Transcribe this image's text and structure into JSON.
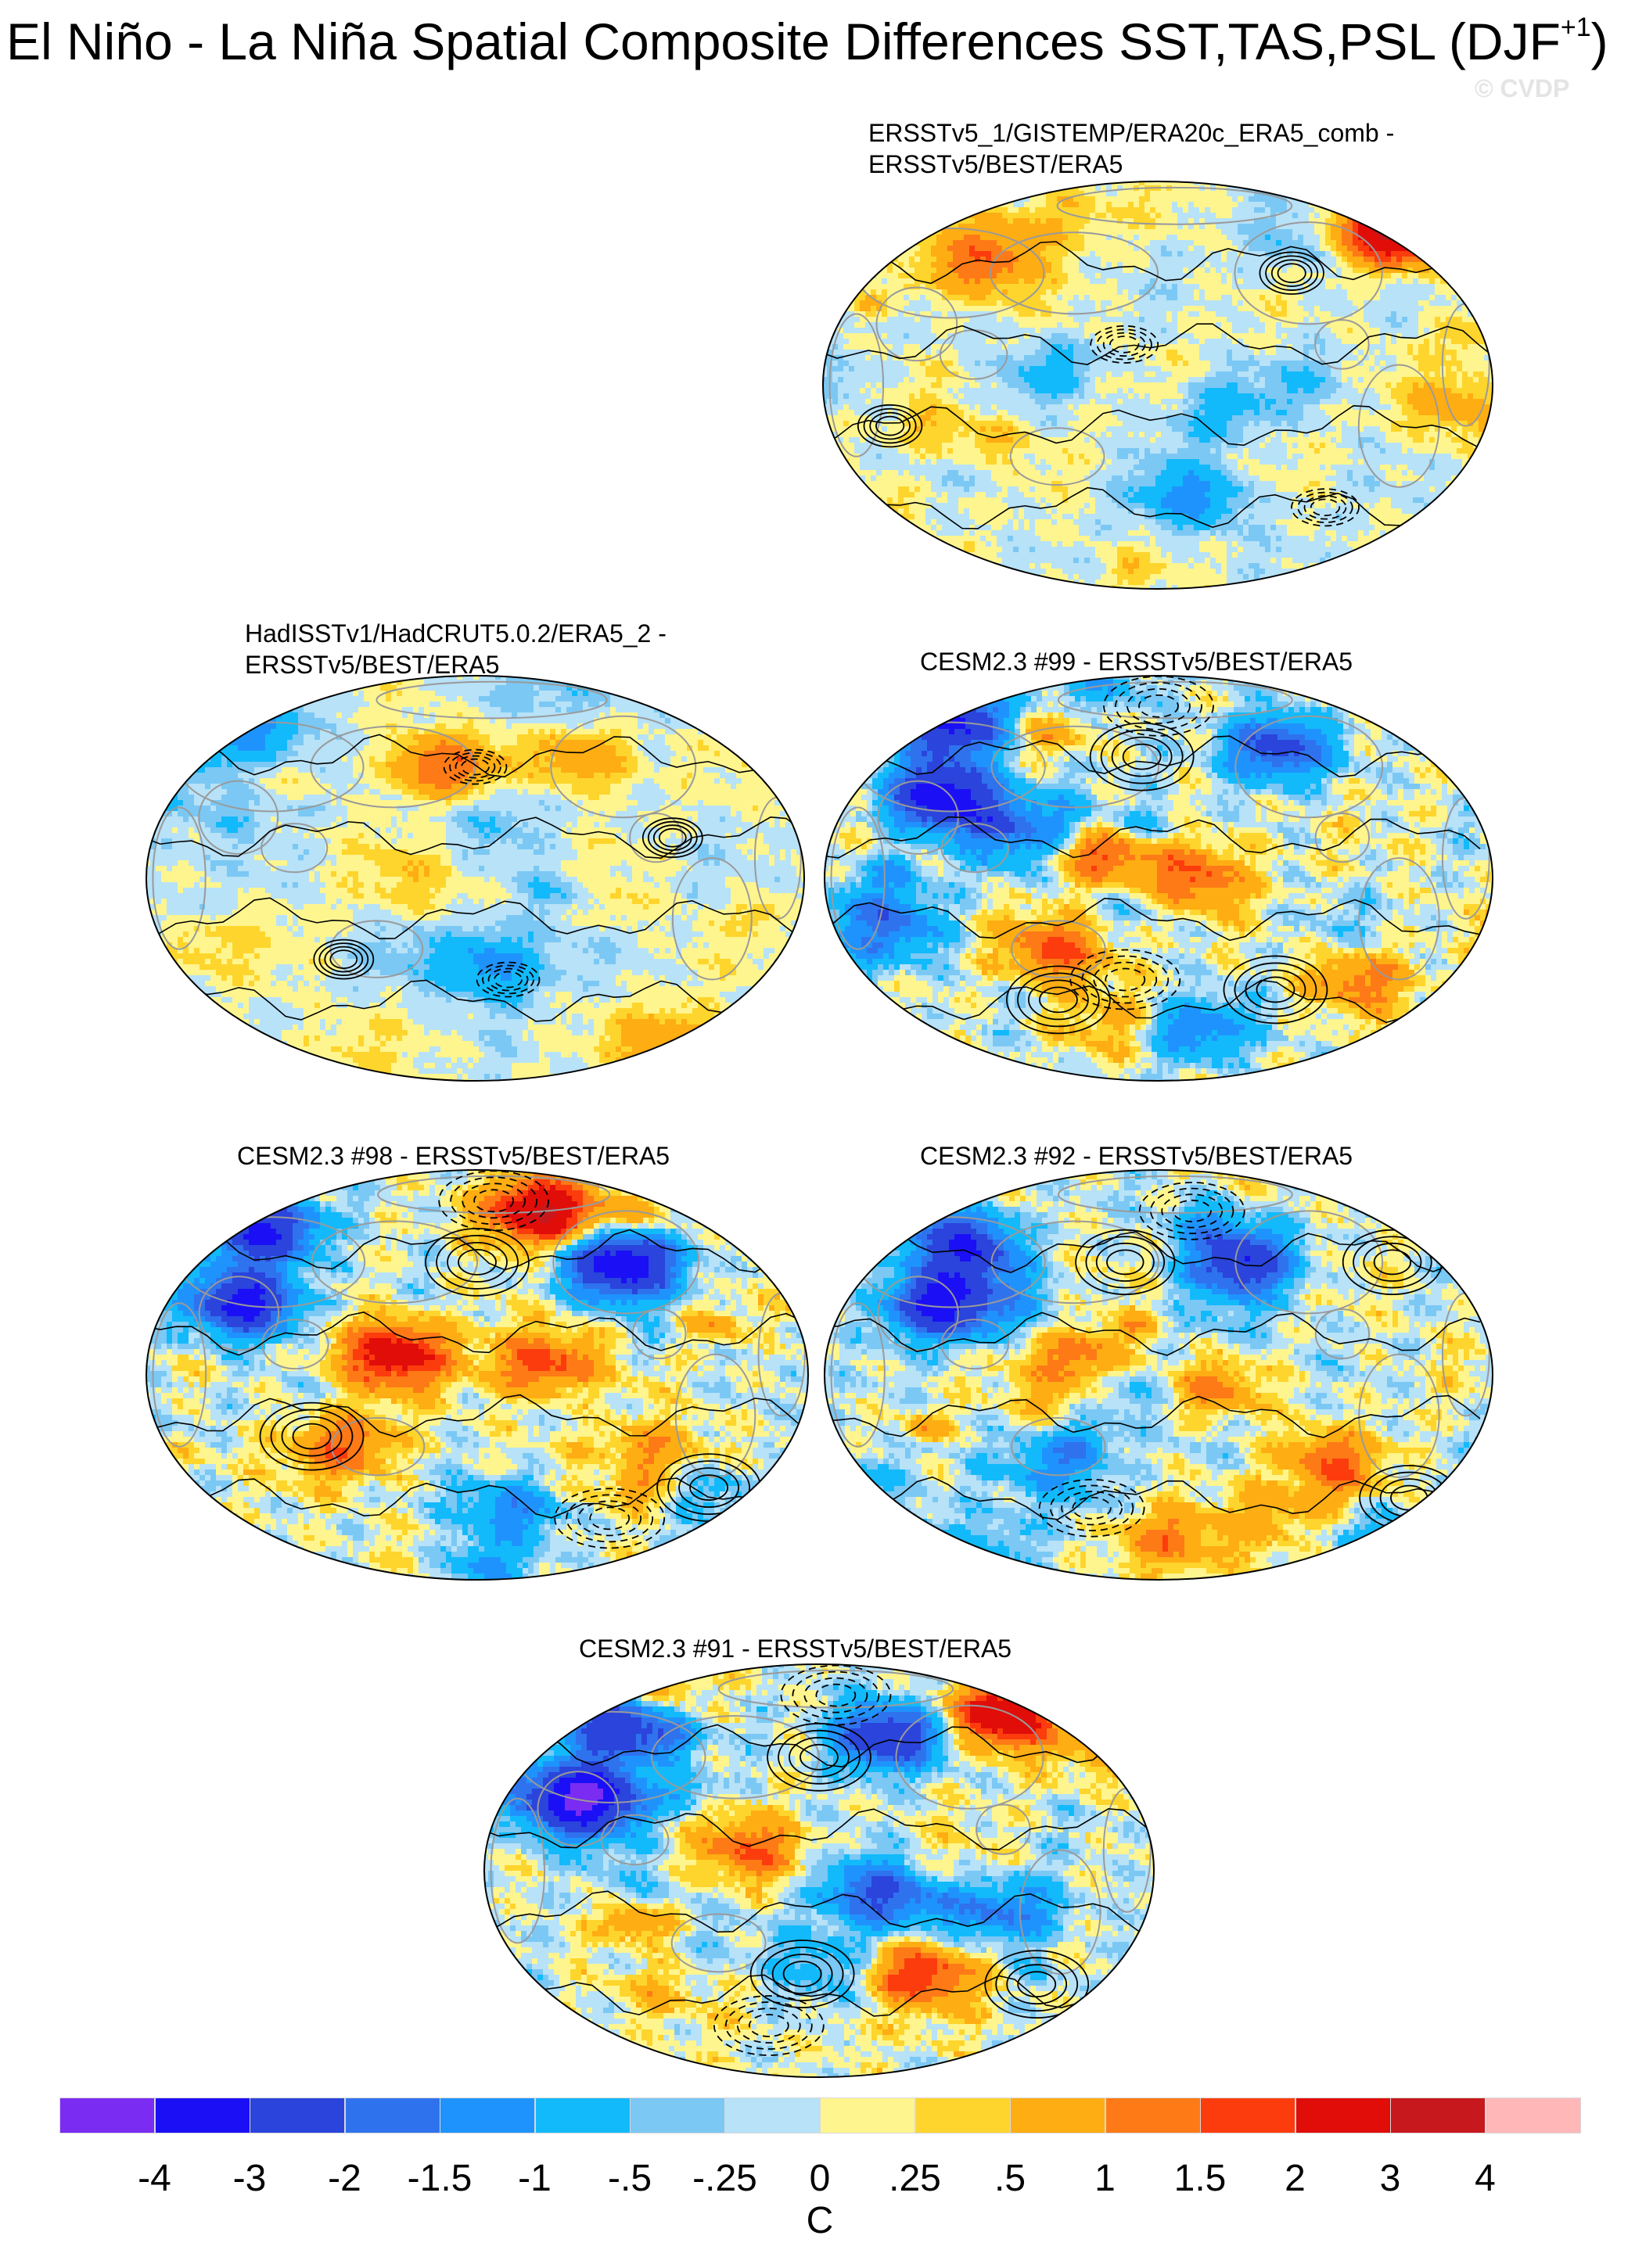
{
  "figure": {
    "title": "El Niño - La Niña Spatial Composite Differences SST,TAS,PSL (DJF",
    "title_superscript": "+1",
    "title_close": ")",
    "watermark": "© CVDP"
  },
  "panels": [
    {
      "id": "p1",
      "title_lines": [
        "ERSSTv5_1/GISTEMP/ERA20c_ERA5_comb -",
        "ERSSTv5/BEST/ERA5"
      ],
      "seed": 11,
      "amp": 0.55,
      "blobs": [
        [
          -0.55,
          0.6,
          1.3
        ],
        [
          0.7,
          0.75,
          3.2
        ],
        [
          0.1,
          -0.55,
          -1.2
        ],
        [
          -0.3,
          0.05,
          -0.6
        ],
        [
          0.9,
          -0.1,
          0.8
        ]
      ],
      "lows": [
        [
          0.5,
          -0.6
        ],
        [
          -0.1,
          0.2
        ]
      ],
      "highs": [
        [
          -0.8,
          -0.2
        ],
        [
          0.4,
          0.55
        ]
      ]
    },
    {
      "id": "p2",
      "title_lines": [
        "HadISSTv1/HadCRUT5.0.2/ERA5_2 -",
        "ERSSTv5/BEST/ERA5"
      ],
      "seed": 23,
      "amp": 0.5,
      "blobs": [
        [
          -0.1,
          0.55,
          1.5
        ],
        [
          0.35,
          0.6,
          1.2
        ],
        [
          -0.7,
          0.7,
          -1.2
        ],
        [
          0.05,
          -0.45,
          -1.0
        ],
        [
          0.6,
          -0.8,
          0.9
        ]
      ],
      "lows": [
        [
          0.0,
          0.55
        ],
        [
          0.1,
          -0.5
        ]
      ],
      "highs": [
        [
          -0.4,
          -0.4
        ],
        [
          0.6,
          0.2
        ]
      ]
    },
    {
      "id": "p3",
      "title_lines": [
        "CESM2.3 #99 - ERSSTv5/BEST/ERA5"
      ],
      "seed": 37,
      "amp": 1.0,
      "blobs": [
        [
          -0.6,
          0.75,
          -3.0
        ],
        [
          0.35,
          0.65,
          -2.5
        ],
        [
          -0.65,
          0.4,
          -3.8
        ],
        [
          -0.2,
          0.12,
          2.2
        ],
        [
          0.1,
          0.0,
          1.6
        ],
        [
          -0.3,
          -0.35,
          1.6
        ],
        [
          0.6,
          -0.5,
          1.2
        ],
        [
          0.1,
          -0.75,
          -1.5
        ]
      ],
      "lows": [
        [
          -0.1,
          -0.5
        ],
        [
          0.0,
          0.85
        ]
      ],
      "highs": [
        [
          -0.05,
          0.6
        ],
        [
          -0.3,
          -0.6
        ],
        [
          0.35,
          -0.55
        ]
      ]
    },
    {
      "id": "p4",
      "title_lines": [
        "CESM2.3 #98 - ERSSTv5/BEST/ERA5"
      ],
      "seed": 41,
      "amp": 1.0,
      "blobs": [
        [
          -0.65,
          0.7,
          -3.2
        ],
        [
          0.45,
          0.55,
          -3.2
        ],
        [
          0.2,
          0.8,
          3.5
        ],
        [
          -0.7,
          0.35,
          -3.5
        ],
        [
          -0.25,
          0.1,
          2.5
        ],
        [
          0.2,
          0.05,
          1.8
        ],
        [
          0.5,
          -0.45,
          2.0
        ],
        [
          -0.4,
          -0.35,
          1.4
        ],
        [
          0.1,
          -0.65,
          -1.4
        ]
      ],
      "lows": [
        [
          0.05,
          0.85
        ],
        [
          0.4,
          -0.7
        ]
      ],
      "highs": [
        [
          0.0,
          0.55
        ],
        [
          0.7,
          -0.55
        ],
        [
          -0.5,
          -0.3
        ]
      ]
    },
    {
      "id": "p5",
      "title_lines": [
        "CESM2.3 #92 - ERSSTv5/BEST/ERA5"
      ],
      "seed": 53,
      "amp": 0.95,
      "blobs": [
        [
          -0.6,
          0.65,
          -2.6
        ],
        [
          0.25,
          0.55,
          -2.8
        ],
        [
          -0.65,
          0.35,
          -3.5
        ],
        [
          -0.2,
          0.05,
          2.2
        ],
        [
          0.15,
          -0.1,
          1.4
        ],
        [
          0.5,
          -0.45,
          1.5
        ],
        [
          -0.3,
          -0.45,
          -1.2
        ],
        [
          0.0,
          -0.8,
          1.2
        ]
      ],
      "lows": [
        [
          -0.2,
          -0.65
        ],
        [
          0.1,
          0.8
        ]
      ],
      "highs": [
        [
          -0.1,
          0.55
        ],
        [
          0.75,
          -0.6
        ],
        [
          0.7,
          0.55
        ]
      ]
    },
    {
      "id": "p6",
      "title_lines": [
        "CESM2.3 #91 - ERSSTv5/BEST/ERA5"
      ],
      "seed": 67,
      "amp": 1.0,
      "blobs": [
        [
          -0.6,
          0.7,
          -3.0
        ],
        [
          0.2,
          0.65,
          -3.0
        ],
        [
          0.55,
          0.75,
          2.5
        ],
        [
          -0.7,
          0.35,
          -3.5
        ],
        [
          -0.2,
          0.1,
          1.4
        ],
        [
          0.15,
          -0.1,
          -1.5
        ],
        [
          0.3,
          -0.5,
          2.0
        ],
        [
          -0.5,
          -0.55,
          1.5
        ],
        [
          0.6,
          -0.2,
          -1.3
        ]
      ],
      "lows": [
        [
          0.05,
          0.85
        ],
        [
          -0.15,
          -0.75
        ]
      ],
      "highs": [
        [
          0.0,
          0.55
        ],
        [
          -0.05,
          -0.5
        ],
        [
          0.65,
          -0.55
        ]
      ]
    }
  ],
  "colorbar": {
    "colors": [
      "#7a2cf2",
      "#1b10f5",
      "#2a44dc",
      "#2f72ee",
      "#1f93fd",
      "#12bafb",
      "#7bc8f4",
      "#b7e2f8",
      "#fff58e",
      "#fed52c",
      "#fead12",
      "#fd7a16",
      "#fc3c0d",
      "#e10d09",
      "#c7181d",
      "#ffb7b8"
    ],
    "labels": [
      "-4",
      "-3",
      "-2",
      "-1.5",
      "-1",
      "-.5",
      "-.25",
      "0",
      ".25",
      ".5",
      "1",
      "1.5",
      "2",
      "3",
      "4"
    ],
    "units": "C"
  }
}
